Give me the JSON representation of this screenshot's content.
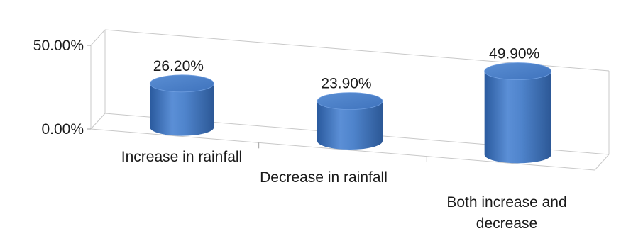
{
  "chart_data": {
    "type": "bar",
    "style": "3d-cylinder",
    "categories": [
      [
        "Increase in rainfall"
      ],
      [
        "Decrease in rainfall"
      ],
      [
        "Both increase and",
        "decrease"
      ]
    ],
    "values": [
      26.2,
      23.9,
      49.9
    ],
    "data_labels": [
      "26.20%",
      "23.90%",
      "49.90%"
    ],
    "yticks": [
      "0.00%",
      "50.00%"
    ],
    "ylim": [
      0,
      50
    ],
    "gridlines": true,
    "legend": "none",
    "series_color": "#4a7ebb"
  }
}
